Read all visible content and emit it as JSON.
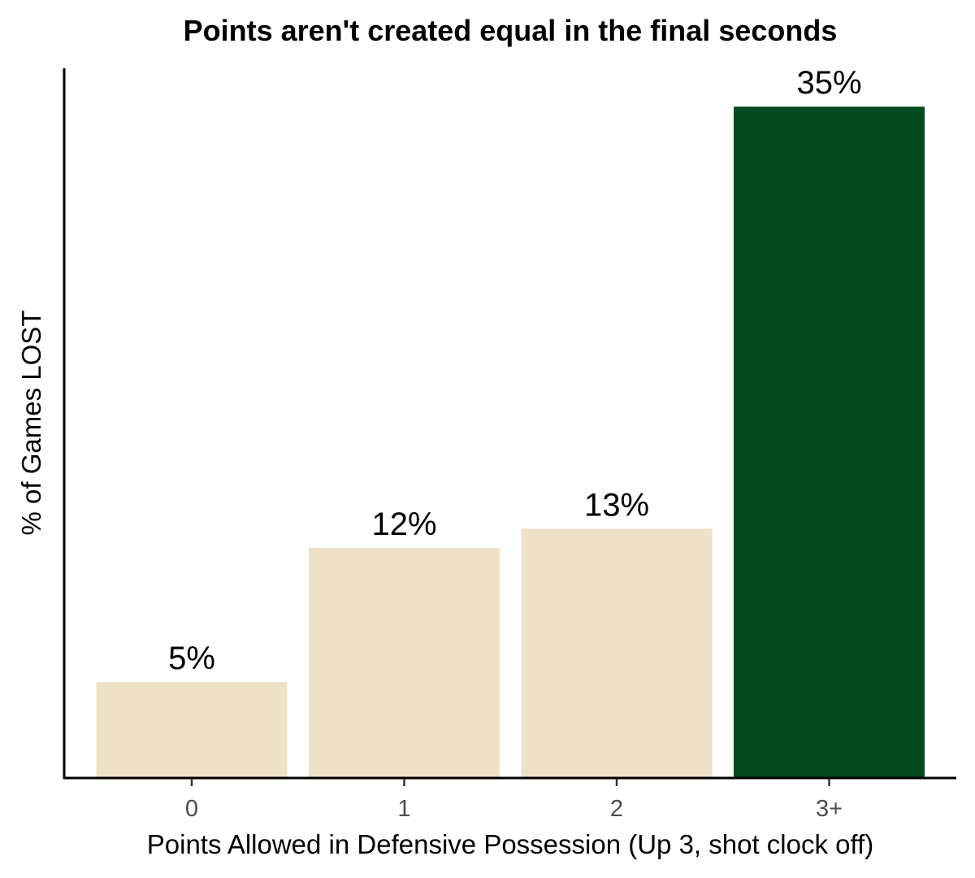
{
  "chart_data": {
    "type": "bar",
    "title": "Points aren't created equal in the final seconds",
    "xlabel": "Points Allowed in Defensive Possession (Up 3, shot clock off)",
    "ylabel": "% of Games LOST",
    "categories": [
      "0",
      "1",
      "2",
      "3+"
    ],
    "values": [
      5,
      12,
      13,
      35
    ],
    "data_labels": [
      "5%",
      "12%",
      "13%",
      "35%"
    ],
    "bar_colors": [
      "#efe1c6",
      "#efe1c6",
      "#efe1c6",
      "#034a1e"
    ],
    "ylim": [
      0,
      37
    ],
    "y_ticks_shown": false,
    "grid": false,
    "legend": "none"
  }
}
